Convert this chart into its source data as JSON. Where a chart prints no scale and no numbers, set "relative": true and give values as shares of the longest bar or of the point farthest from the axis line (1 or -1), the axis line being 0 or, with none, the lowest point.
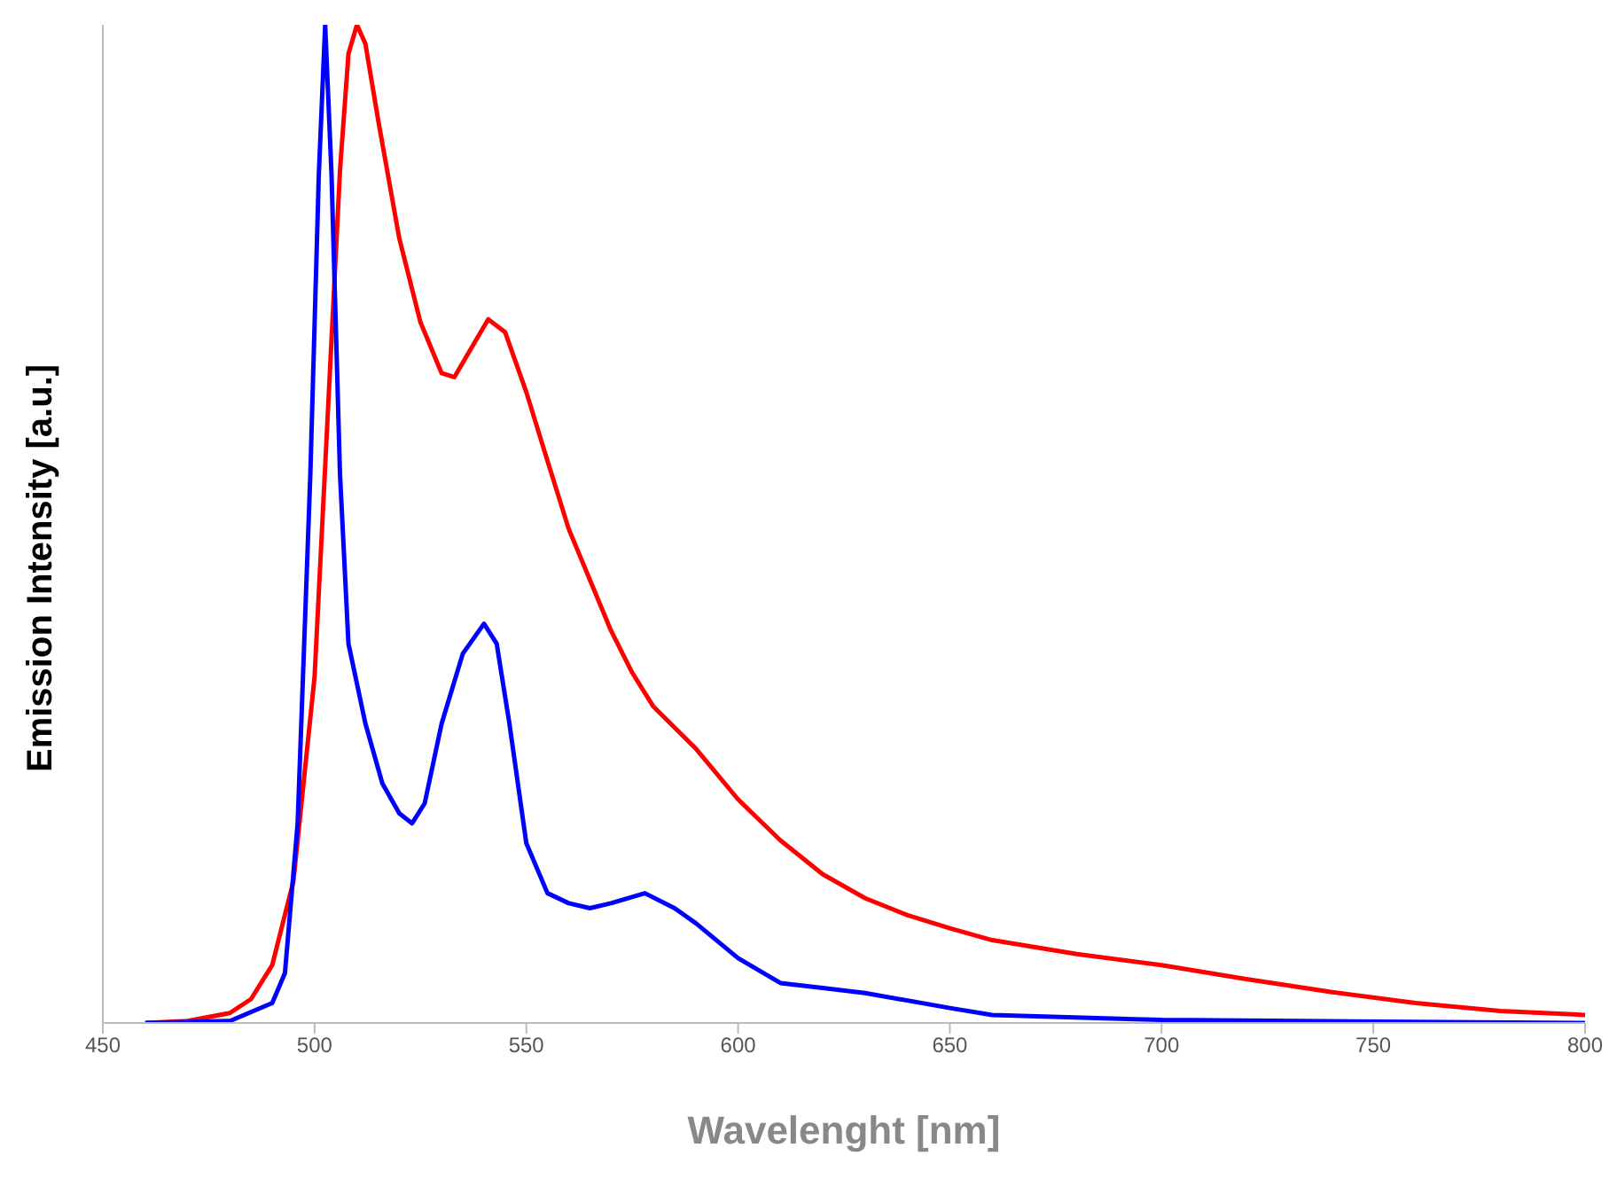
{
  "chart_data": {
    "type": "line",
    "xlabel": "Wavelenght [nm]",
    "ylabel": "Emission Intensity [a.u.]",
    "relative": true,
    "xlim": [
      450,
      800
    ],
    "xticks": [
      450,
      500,
      550,
      600,
      650,
      700,
      750,
      800
    ],
    "tick_labels": "x",
    "grid": false,
    "marker": "none",
    "line_style": "solid",
    "series": [
      {
        "color": "#ff0000",
        "x": [
          460,
          470,
          480,
          485,
          490,
          495,
          500,
          503,
          506,
          508,
          510,
          512,
          515,
          520,
          525,
          530,
          533,
          537,
          541,
          545,
          550,
          555,
          560,
          570,
          575,
          580,
          590,
          600,
          610,
          620,
          630,
          640,
          650,
          660,
          680,
          700,
          720,
          740,
          760,
          780,
          800
        ],
        "values": [
          0,
          0.002,
          0.01,
          0.024,
          0.058,
          0.142,
          0.347,
          0.6,
          0.854,
          0.971,
          1.0,
          0.981,
          0.905,
          0.786,
          0.702,
          0.651,
          0.647,
          0.676,
          0.705,
          0.692,
          0.632,
          0.563,
          0.495,
          0.393,
          0.351,
          0.317,
          0.275,
          0.224,
          0.183,
          0.149,
          0.125,
          0.108,
          0.095,
          0.083,
          0.069,
          0.058,
          0.044,
          0.031,
          0.02,
          0.012,
          0.008
        ]
      },
      {
        "color": "#0000ff",
        "x": [
          460,
          480,
          490,
          493,
          496,
          499,
          501,
          502.5,
          504,
          506,
          508,
          512,
          516,
          520,
          523,
          526,
          530,
          535,
          540,
          543,
          546,
          550,
          555,
          560,
          565,
          570,
          578,
          585,
          590,
          600,
          610,
          620,
          630,
          650,
          660,
          700,
          800
        ],
        "values": [
          0,
          0.002,
          0.02,
          0.05,
          0.2,
          0.55,
          0.85,
          1.0,
          0.85,
          0.55,
          0.38,
          0.3,
          0.24,
          0.21,
          0.2,
          0.22,
          0.3,
          0.37,
          0.4,
          0.38,
          0.3,
          0.18,
          0.13,
          0.12,
          0.115,
          0.12,
          0.13,
          0.115,
          0.1,
          0.065,
          0.04,
          0.035,
          0.03,
          0.015,
          0.008,
          0.003,
          0
        ]
      }
    ]
  }
}
